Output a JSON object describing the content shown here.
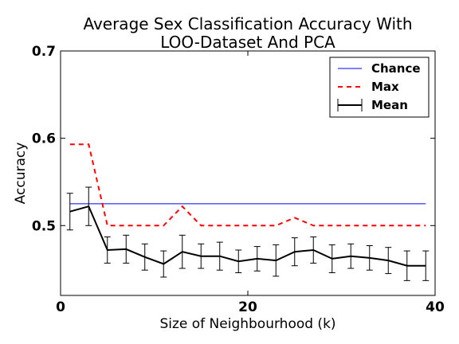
{
  "chart_data": {
    "type": "line",
    "title": "Average Sex Classification Accuracy With",
    "title_line2": "LOO-Dataset And PCA",
    "xlabel": "Size of Neighbourhood (k)",
    "ylabel": "Accuracy",
    "xlim": [
      0,
      40
    ],
    "ylim": [
      0.42,
      0.7
    ],
    "x_ticks": [
      0,
      20,
      40
    ],
    "y_ticks": [
      0.5,
      0.6,
      0.7
    ],
    "x_tick_labels": [
      "0",
      "20",
      "40"
    ],
    "y_tick_labels": [
      "0.5",
      "0.6",
      "0.7"
    ],
    "grid": false,
    "legend_position": "top-right",
    "x": [
      1,
      3,
      5,
      7,
      9,
      11,
      13,
      15,
      17,
      19,
      21,
      23,
      25,
      27,
      29,
      31,
      33,
      35,
      37,
      39
    ],
    "series": [
      {
        "name": "Chance",
        "style": "solid",
        "color": "#0000ff",
        "values": [
          0.525,
          0.525,
          0.525,
          0.525,
          0.525,
          0.525,
          0.525,
          0.525,
          0.525,
          0.525,
          0.525,
          0.525,
          0.525,
          0.525,
          0.525,
          0.525,
          0.525,
          0.525,
          0.525,
          0.525
        ]
      },
      {
        "name": "Max",
        "style": "dashed",
        "color": "#ff0000",
        "values": [
          0.593,
          0.593,
          0.5,
          0.5,
          0.5,
          0.5,
          0.522,
          0.5,
          0.5,
          0.5,
          0.5,
          0.5,
          0.509,
          0.5,
          0.5,
          0.5,
          0.5,
          0.5,
          0.5,
          0.5
        ]
      },
      {
        "name": "Mean",
        "style": "solid",
        "color": "#000000",
        "values": [
          0.516,
          0.522,
          0.472,
          0.473,
          0.464,
          0.456,
          0.47,
          0.465,
          0.465,
          0.459,
          0.462,
          0.46,
          0.47,
          0.472,
          0.462,
          0.465,
          0.463,
          0.46,
          0.454,
          0.454
        ],
        "errors": [
          0.021,
          0.022,
          0.015,
          0.016,
          0.015,
          0.015,
          0.019,
          0.014,
          0.016,
          0.013,
          0.014,
          0.018,
          0.016,
          0.015,
          0.016,
          0.014,
          0.014,
          0.015,
          0.017,
          0.017
        ]
      }
    ]
  }
}
